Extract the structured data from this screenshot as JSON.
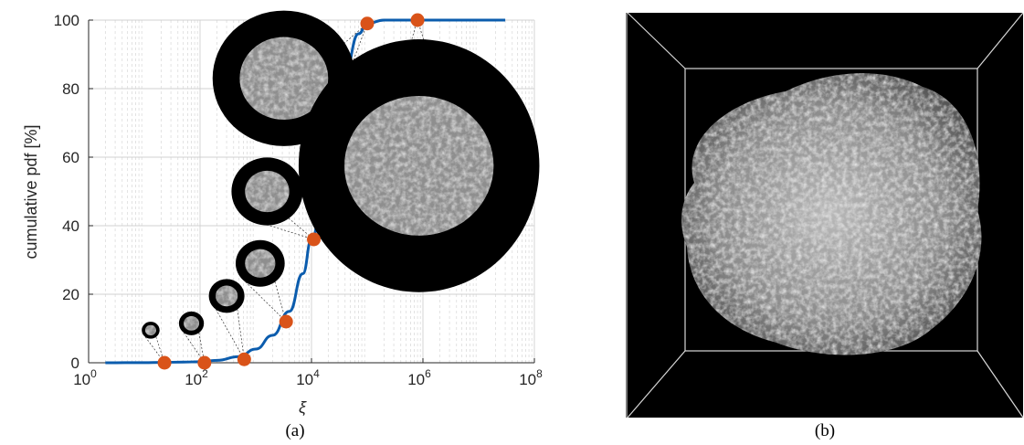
{
  "figure": {
    "caption_a": "(a)",
    "caption_b": "(b)"
  },
  "chart_data": {
    "type": "line",
    "xscale": "log",
    "xlim": [
      1,
      100000000
    ],
    "ylim": [
      0,
      100
    ],
    "xlabel": "ξ",
    "ylabel": "cumulative pdf [%]",
    "grid": true,
    "x_ticks": [
      {
        "base": "10",
        "exp": "0",
        "value": 1
      },
      {
        "base": "10",
        "exp": "2",
        "value": 100
      },
      {
        "base": "10",
        "exp": "4",
        "value": 10000
      },
      {
        "base": "10",
        "exp": "6",
        "value": 1000000
      },
      {
        "base": "10",
        "exp": "8",
        "value": 100000000
      }
    ],
    "y_ticks": [
      "0",
      "20",
      "40",
      "60",
      "80",
      "100"
    ],
    "series": [
      {
        "color": "#0b5cad",
        "x": [
          2,
          10,
          20,
          50,
          100,
          200,
          500,
          1000,
          2000,
          4000,
          7000,
          10000,
          20000,
          40000,
          70000,
          100000,
          200000,
          1000000,
          30000000
        ],
        "y": [
          0,
          0.05,
          0.1,
          0.2,
          0.3,
          0.7,
          1.8,
          4,
          8,
          15,
          26,
          36,
          62,
          85,
          96,
          99,
          100,
          100,
          100
        ]
      }
    ],
    "markers": {
      "color": "#d95319",
      "x": [
        23,
        120,
        620,
        3500,
        11000,
        100000,
        800000
      ],
      "y": [
        0,
        0,
        1,
        12,
        36,
        99,
        100
      ]
    },
    "insets": [
      {
        "marker": 0,
        "x": 13,
        "y": 9.5,
        "r_frac": 0.02
      },
      {
        "marker": 1,
        "x": 70,
        "y": 11.5,
        "r_frac": 0.028
      },
      {
        "marker": 2,
        "x": 300,
        "y": 19.5,
        "r_frac": 0.04
      },
      {
        "marker": 3,
        "x": 1200,
        "y": 29,
        "r_frac": 0.055
      },
      {
        "marker": 4,
        "x": 1600,
        "y": 50,
        "r_frac": 0.08
      },
      {
        "marker": 5,
        "x": 3200,
        "y": 83,
        "r_frac": 0.16
      },
      {
        "marker": 6,
        "x": 850000,
        "y": 57.5,
        "r_frac": 0.27
      }
    ]
  }
}
